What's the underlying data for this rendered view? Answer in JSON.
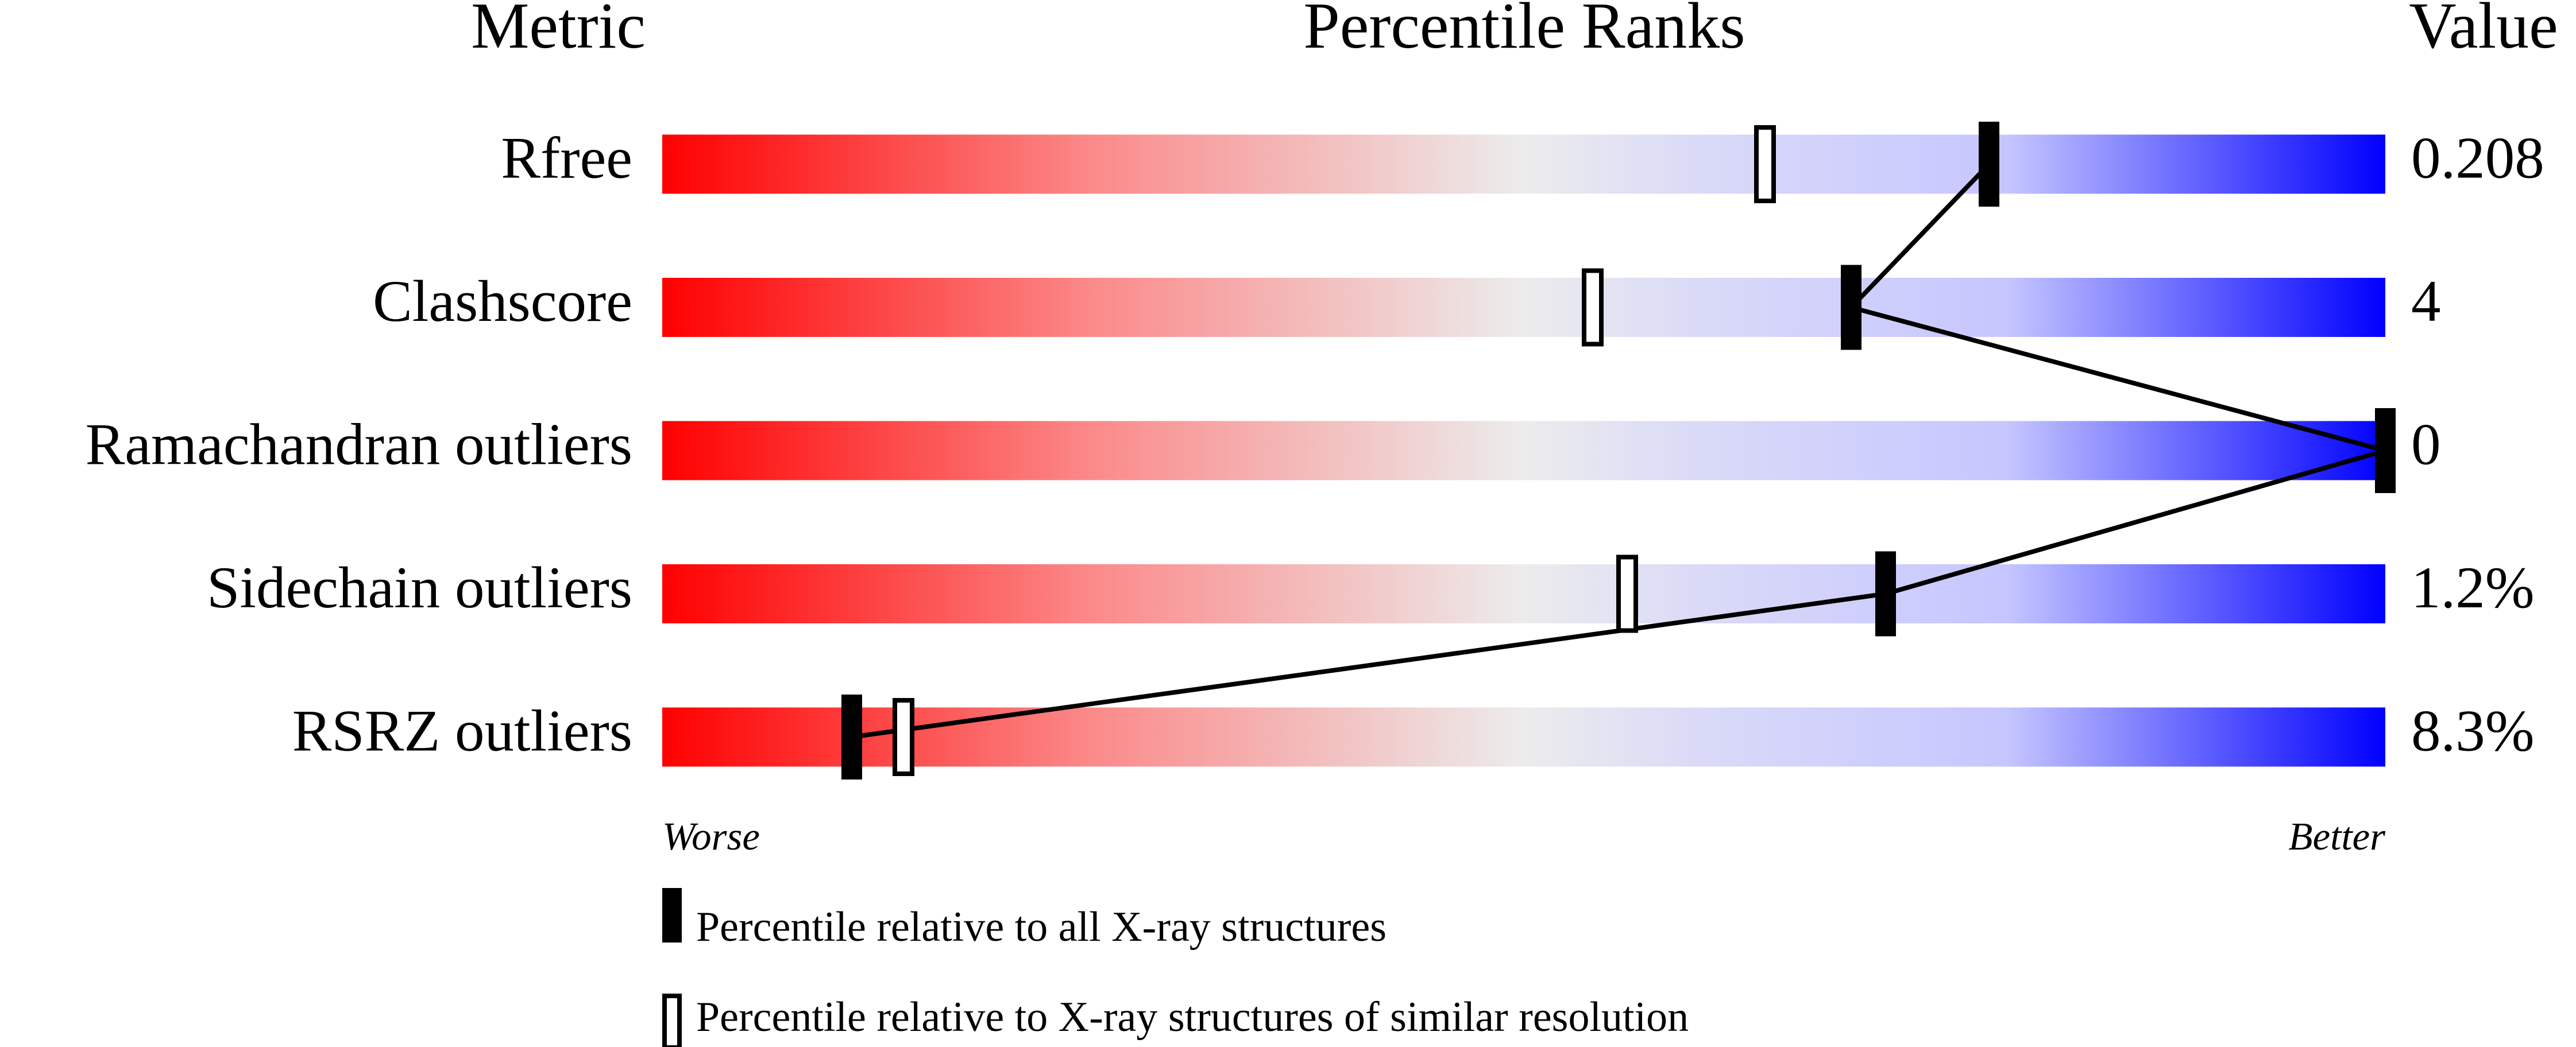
{
  "chart_data": {
    "type": "percentile_slider",
    "column_headers": [
      "Metric",
      "Percentile Ranks",
      "Value"
    ],
    "categories": [
      "Rfree",
      "Clashscore",
      "Ramachandran outliers",
      "Sidechain outliers",
      "RSRZ outliers"
    ],
    "metric_values": [
      "0.208",
      "4",
      "0",
      "1.2%",
      "8.3%"
    ],
    "xlim": [
      0,
      100
    ],
    "axis_labels": {
      "low": "Worse",
      "high": "Better"
    },
    "series": [
      {
        "name": "Percentile relative to all X-ray structures",
        "color": "#000000",
        "values": [
          77,
          69,
          100,
          71,
          11
        ]
      },
      {
        "name": "Percentile relative to X-ray structures of similar resolution",
        "color": "#ffffff",
        "values": [
          64,
          54,
          null,
          56,
          14
        ]
      }
    ]
  }
}
